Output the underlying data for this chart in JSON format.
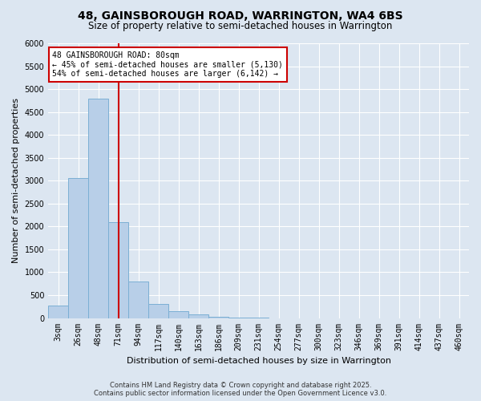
{
  "title_line1": "48, GAINSBOROUGH ROAD, WARRINGTON, WA4 6BS",
  "title_line2": "Size of property relative to semi-detached houses in Warrington",
  "xlabel": "Distribution of semi-detached houses by size in Warrington",
  "ylabel": "Number of semi-detached properties",
  "categories": [
    "3sqm",
    "26sqm",
    "48sqm",
    "71sqm",
    "94sqm",
    "117sqm",
    "140sqm",
    "163sqm",
    "186sqm",
    "209sqm",
    "231sqm",
    "254sqm",
    "277sqm",
    "300sqm",
    "323sqm",
    "346sqm",
    "369sqm",
    "391sqm",
    "414sqm",
    "437sqm",
    "460sqm"
  ],
  "values": [
    270,
    3050,
    4800,
    2100,
    800,
    300,
    150,
    80,
    30,
    5,
    2,
    0,
    0,
    0,
    0,
    0,
    0,
    0,
    0,
    0,
    0
  ],
  "bar_color": "#b8cfe8",
  "bar_edge_color": "#7bafd4",
  "background_color": "#dce6f1",
  "grid_color": "#ffffff",
  "red_line_index": 3,
  "annotation_text": "48 GAINSBOROUGH ROAD: 80sqm\n← 45% of semi-detached houses are smaller (5,130)\n54% of semi-detached houses are larger (6,142) →",
  "annotation_box_color": "#ffffff",
  "annotation_box_edge_color": "#cc0000",
  "ylim": [
    0,
    6000
  ],
  "yticks": [
    0,
    500,
    1000,
    1500,
    2000,
    2500,
    3000,
    3500,
    4000,
    4500,
    5000,
    5500,
    6000
  ],
  "footer_line1": "Contains HM Land Registry data © Crown copyright and database right 2025.",
  "footer_line2": "Contains public sector information licensed under the Open Government Licence v3.0.",
  "title_fontsize": 10,
  "subtitle_fontsize": 8.5,
  "axis_label_fontsize": 8,
  "tick_fontsize": 7,
  "annotation_fontsize": 7,
  "footer_fontsize": 6
}
